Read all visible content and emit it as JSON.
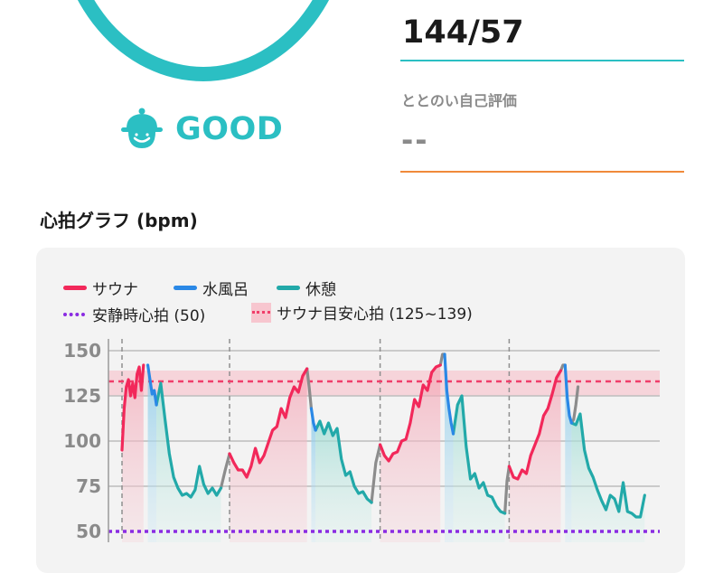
{
  "blood_pressure": "144/57",
  "status": {
    "label": "GOOD",
    "icon": "smiling-bell-face-icon",
    "color": "#2bbfc3"
  },
  "self_evaluation": {
    "label": "ととのい自己評価",
    "value": "--"
  },
  "graph": {
    "title": "心拍グラフ (bpm)",
    "legend": {
      "sauna": "サウナ",
      "cold_bath": "水風呂",
      "rest": "休憩",
      "resting_hr": "安静時心拍 (50)",
      "target_hr": "サウナ目安心拍 (125~139)"
    }
  },
  "colors": {
    "sauna": "#f2285a",
    "cold_bath": "#2a88e6",
    "rest": "#22a9a9",
    "transition": "#8c8c8c",
    "resting": "#8a2be2",
    "target": "#f03e6a",
    "band": "#f7c6cf",
    "ring": "#2bbfc3",
    "accent_line": "#f08a3a"
  },
  "chart_data": {
    "type": "line",
    "ylabel": "bpm",
    "y_ticks": [
      "150",
      "125",
      "100",
      "75",
      "50"
    ],
    "ylim": [
      45,
      152
    ],
    "resting_hr": 50,
    "target_range": [
      125,
      139
    ],
    "target_line": 133,
    "series": [
      {
        "name": "サウナ",
        "color": "#f2285a",
        "segments": [
          [
            [
              0,
              95
            ],
            [
              1,
              118
            ],
            [
              2,
              130
            ],
            [
              3,
              134
            ],
            [
              4,
              125
            ],
            [
              5,
              132
            ],
            [
              6,
              124
            ],
            [
              7,
              137
            ],
            [
              8,
              141
            ],
            [
              9,
              128
            ],
            [
              10,
              142
            ]
          ],
          [
            [
              50,
              93
            ],
            [
              52,
              88
            ],
            [
              54,
              84
            ],
            [
              56,
              84
            ],
            [
              58,
              80
            ],
            [
              60,
              86
            ],
            [
              62,
              96
            ],
            [
              64,
              88
            ],
            [
              66,
              92
            ],
            [
              68,
              99
            ],
            [
              70,
              106
            ],
            [
              72,
              108
            ],
            [
              74,
              118
            ],
            [
              76,
              113
            ],
            [
              78,
              124
            ],
            [
              80,
              130
            ],
            [
              82,
              127
            ],
            [
              84,
              136
            ],
            [
              86,
              140
            ]
          ],
          [
            [
              120,
              98
            ],
            [
              122,
              92
            ],
            [
              124,
              89
            ],
            [
              126,
              93
            ],
            [
              128,
              94
            ],
            [
              130,
              100
            ],
            [
              132,
              101
            ],
            [
              134,
              110
            ],
            [
              136,
              123
            ],
            [
              138,
              119
            ],
            [
              140,
              131
            ],
            [
              142,
              128
            ],
            [
              144,
              138
            ],
            [
              146,
              141
            ],
            [
              148,
              142
            ]
          ],
          [
            [
              180,
              86
            ],
            [
              182,
              80
            ],
            [
              184,
              79
            ],
            [
              186,
              84
            ],
            [
              188,
              82
            ],
            [
              190,
              92
            ],
            [
              192,
              98
            ],
            [
              194,
              104
            ],
            [
              196,
              114
            ],
            [
              198,
              118
            ],
            [
              200,
              126
            ],
            [
              202,
              135
            ],
            [
              204,
              139
            ]
          ]
        ]
      },
      {
        "name": "水風呂",
        "color": "#2a88e6",
        "segments": [
          [
            [
              12,
              142
            ],
            [
              13,
              134
            ],
            [
              14,
              126
            ],
            [
              15,
              128
            ],
            [
              16,
              120
            ]
          ],
          [
            [
              88,
              118
            ],
            [
              89,
              110
            ],
            [
              90,
              106
            ]
          ],
          [
            [
              150,
              148
            ],
            [
              151,
              128
            ],
            [
              152,
              118
            ],
            [
              153,
              110
            ],
            [
              154,
              104
            ]
          ],
          [
            [
              206,
              142
            ],
            [
              207,
              124
            ],
            [
              208,
              114
            ],
            [
              209,
              110
            ]
          ]
        ]
      },
      {
        "name": "休憩",
        "color": "#22a9a9",
        "segments": [
          [
            [
              16,
              120
            ],
            [
              18,
              132
            ],
            [
              20,
              112
            ],
            [
              22,
              93
            ],
            [
              24,
              80
            ],
            [
              26,
              74
            ],
            [
              28,
              70
            ],
            [
              30,
              71
            ],
            [
              32,
              69
            ],
            [
              34,
              73
            ],
            [
              36,
              86
            ],
            [
              38,
              76
            ],
            [
              40,
              71
            ],
            [
              42,
              74
            ],
            [
              44,
              70
            ],
            [
              46,
              74
            ]
          ],
          [
            [
              90,
              106
            ],
            [
              92,
              111
            ],
            [
              94,
              104
            ],
            [
              96,
              110
            ],
            [
              98,
              103
            ],
            [
              100,
              107
            ],
            [
              102,
              90
            ],
            [
              104,
              81
            ],
            [
              106,
              83
            ],
            [
              108,
              75
            ],
            [
              110,
              71
            ],
            [
              112,
              72
            ],
            [
              114,
              68
            ],
            [
              116,
              66
            ]
          ],
          [
            [
              154,
              104
            ],
            [
              156,
              120
            ],
            [
              158,
              125
            ],
            [
              160,
              97
            ],
            [
              162,
              79
            ],
            [
              164,
              82
            ],
            [
              166,
              74
            ],
            [
              168,
              77
            ],
            [
              170,
              70
            ],
            [
              172,
              69
            ],
            [
              174,
              64
            ],
            [
              176,
              61
            ],
            [
              178,
              60
            ]
          ],
          [
            [
              209,
              110
            ],
            [
              211,
              109
            ],
            [
              213,
              115
            ],
            [
              215,
              95
            ],
            [
              217,
              85
            ],
            [
              219,
              80
            ],
            [
              221,
              73
            ],
            [
              223,
              67
            ],
            [
              225,
              62
            ],
            [
              227,
              70
            ],
            [
              229,
              68
            ],
            [
              231,
              61
            ],
            [
              233,
              77
            ],
            [
              235,
              61
            ],
            [
              237,
              60
            ],
            [
              239,
              58
            ],
            [
              241,
              58
            ],
            [
              243,
              70
            ]
          ]
        ]
      },
      {
        "name": "",
        "color": "#8c8c8c",
        "segments": [
          [
            [
              46,
              74
            ],
            [
              48,
              84
            ],
            [
              50,
              93
            ]
          ],
          [
            [
              86,
              140
            ],
            [
              87,
              130
            ],
            [
              88,
              118
            ]
          ],
          [
            [
              116,
              66
            ],
            [
              118,
              88
            ],
            [
              120,
              98
            ]
          ],
          [
            [
              148,
              142
            ],
            [
              149,
              148
            ],
            [
              150,
              148
            ]
          ],
          [
            [
              178,
              60
            ],
            [
              179,
              78
            ],
            [
              180,
              86
            ]
          ],
          [
            [
              204,
              139
            ],
            [
              205,
              142
            ],
            [
              206,
              142
            ]
          ],
          [
            [
              209,
              110
            ],
            [
              210,
              112
            ],
            [
              211,
              120
            ],
            [
              212,
              130
            ]
          ]
        ]
      }
    ],
    "phase_markers": [
      0,
      50,
      120,
      180
    ]
  }
}
